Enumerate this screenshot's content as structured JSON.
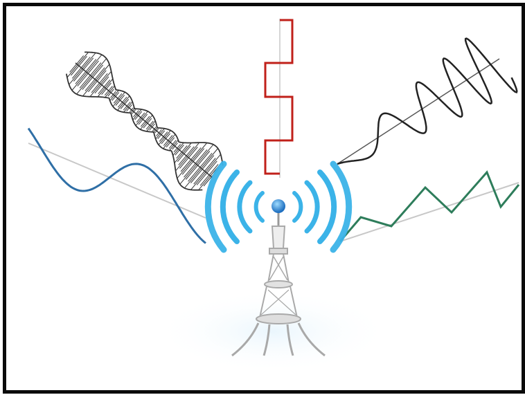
{
  "colors": {
    "frame": "#0a0a0a",
    "background": "#ffffff",
    "square_wave": "#c0201a",
    "sine_wave": "#2f6fa6",
    "modulated_wave": "#333333",
    "chirp_wave": "#222222",
    "triangle_wave": "#2e7d5b",
    "axis_line": "#c8c8c8",
    "signal_arcs": "#3bb3e8",
    "signal_core": "#1e7fd0",
    "tower": "#bdbdbd"
  },
  "icons": {
    "tower": "radio-tower-icon",
    "signal": "wireless-signal-icon"
  }
}
